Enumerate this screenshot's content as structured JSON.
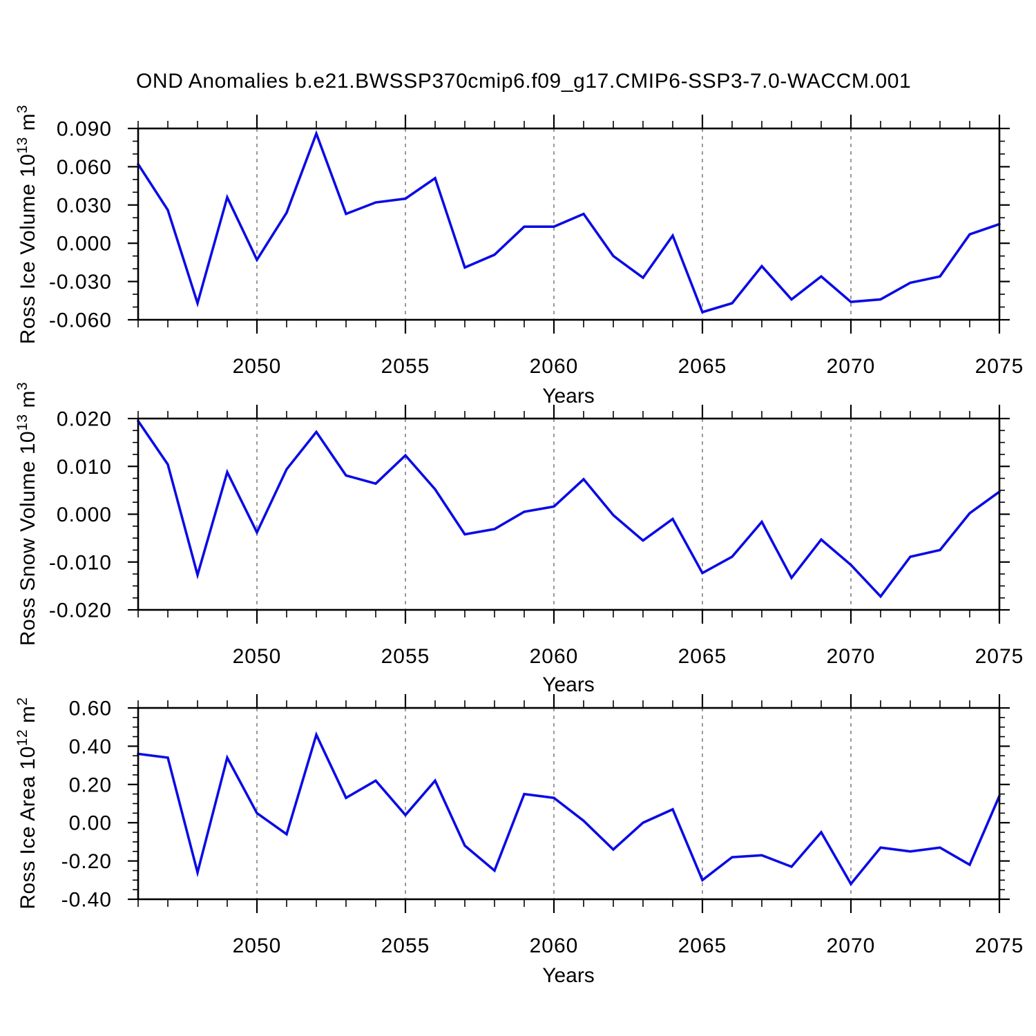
{
  "title": "OND Anomalies b.e21.BWSSP370cmip6.f09_g17.CMIP6-SSP3-7.0-WACCM.001",
  "colors": {
    "line": "#0b0be6",
    "axis": "#000000",
    "grid": "#808080",
    "text": "#000000"
  },
  "chart_data": [
    {
      "type": "line",
      "ylabel_prefix": "Ross Ice Volume 10",
      "ylabel_sup": "13",
      "ylabel_mid": " m",
      "ylabel_unit_sup": "3",
      "xlabel": "Years",
      "xlim": [
        2046,
        2075
      ],
      "ylim": [
        -0.06,
        0.09
      ],
      "x": [
        2046,
        2047,
        2048,
        2049,
        2050,
        2051,
        2052,
        2053,
        2054,
        2055,
        2056,
        2057,
        2058,
        2059,
        2060,
        2061,
        2062,
        2063,
        2064,
        2065,
        2066,
        2067,
        2068,
        2069,
        2070,
        2071,
        2072,
        2073,
        2074,
        2075
      ],
      "values": [
        0.062,
        0.026,
        -0.047,
        0.036,
        -0.013,
        0.024,
        0.086,
        0.023,
        0.032,
        0.035,
        0.051,
        -0.019,
        -0.009,
        0.013,
        0.013,
        0.023,
        -0.01,
        -0.027,
        0.006,
        -0.054,
        -0.047,
        -0.018,
        -0.044,
        -0.026,
        -0.046,
        -0.044,
        -0.031,
        -0.026,
        0.007,
        0.015
      ],
      "yticks": [
        0.09,
        0.06,
        0.03,
        0.0,
        -0.03,
        -0.06
      ],
      "ytick_labels": [
        "0.090",
        "0.060",
        "0.030",
        "0.000",
        "-0.030",
        "-0.060"
      ],
      "y_minor_step": 0.01,
      "xticks": [
        2050,
        2055,
        2060,
        2065,
        2070,
        2075
      ],
      "xtick_labels": [
        "2050",
        "2055",
        "2060",
        "2065",
        "2070",
        "2075"
      ],
      "x_minor_step": 1,
      "grid_x": [
        2050,
        2055,
        2060,
        2065,
        2070
      ],
      "grid_style": "dashed-vertical",
      "legend": "none"
    },
    {
      "type": "line",
      "ylabel_prefix": "Ross Snow Volume 10",
      "ylabel_sup": "13",
      "ylabel_mid": " m",
      "ylabel_unit_sup": "3",
      "xlabel": "Years",
      "xlim": [
        2046,
        2075
      ],
      "ylim": [
        -0.02,
        0.02
      ],
      "x": [
        2046,
        2047,
        2048,
        2049,
        2050,
        2051,
        2052,
        2053,
        2054,
        2055,
        2056,
        2057,
        2058,
        2059,
        2060,
        2061,
        2062,
        2063,
        2064,
        2065,
        2066,
        2067,
        2068,
        2069,
        2070,
        2071,
        2072,
        2073,
        2074,
        2075
      ],
      "values": [
        0.0195,
        0.0104,
        -0.0127,
        0.0088,
        -0.0038,
        0.0094,
        0.0172,
        0.0081,
        0.0064,
        0.0123,
        0.0052,
        -0.0042,
        -0.0031,
        0.0005,
        0.0016,
        0.0073,
        -0.0002,
        -0.0055,
        -0.001,
        -0.0123,
        -0.0089,
        -0.0016,
        -0.0133,
        -0.0053,
        -0.0106,
        -0.0172,
        -0.0089,
        -0.0075,
        0.0002,
        0.0047
      ],
      "yticks": [
        0.02,
        0.01,
        0.0,
        -0.01,
        -0.02
      ],
      "ytick_labels": [
        "0.020",
        "0.010",
        "0.000",
        "-0.010",
        "-0.020"
      ],
      "y_minor_step": 0.0025,
      "xticks": [
        2050,
        2055,
        2060,
        2065,
        2070,
        2075
      ],
      "xtick_labels": [
        "2050",
        "2055",
        "2060",
        "2065",
        "2070",
        "2075"
      ],
      "x_minor_step": 1,
      "grid_x": [
        2050,
        2055,
        2060,
        2065,
        2070
      ],
      "grid_style": "dashed-vertical",
      "legend": "none"
    },
    {
      "type": "line",
      "ylabel_prefix": "Ross Ice Area 10",
      "ylabel_sup": "12",
      "ylabel_mid": " m",
      "ylabel_unit_sup": "2",
      "xlabel": "Years",
      "xlim": [
        2046,
        2075
      ],
      "ylim": [
        -0.4,
        0.6
      ],
      "x": [
        2046,
        2047,
        2048,
        2049,
        2050,
        2051,
        2052,
        2053,
        2054,
        2055,
        2056,
        2057,
        2058,
        2059,
        2060,
        2061,
        2062,
        2063,
        2064,
        2065,
        2066,
        2067,
        2068,
        2069,
        2070,
        2071,
        2072,
        2073,
        2074,
        2075
      ],
      "values": [
        0.36,
        0.34,
        -0.26,
        0.34,
        0.05,
        -0.06,
        0.46,
        0.13,
        0.22,
        0.04,
        0.22,
        -0.12,
        -0.25,
        0.15,
        0.13,
        0.01,
        -0.14,
        0.0,
        0.07,
        -0.3,
        -0.18,
        -0.17,
        -0.23,
        -0.05,
        -0.32,
        -0.13,
        -0.15,
        -0.13,
        -0.22,
        0.14
      ],
      "yticks": [
        0.6,
        0.4,
        0.2,
        0.0,
        -0.2,
        -0.4
      ],
      "ytick_labels": [
        "0.60",
        "0.40",
        "0.20",
        "0.00",
        "-0.20",
        "-0.40"
      ],
      "y_minor_step": 0.05,
      "xticks": [
        2050,
        2055,
        2060,
        2065,
        2070,
        2075
      ],
      "xtick_labels": [
        "2050",
        "2055",
        "2060",
        "2065",
        "2070",
        "2075"
      ],
      "x_minor_step": 1,
      "grid_x": [
        2050,
        2055,
        2060,
        2065,
        2070
      ],
      "grid_style": "dashed-vertical",
      "legend": "none"
    }
  ]
}
